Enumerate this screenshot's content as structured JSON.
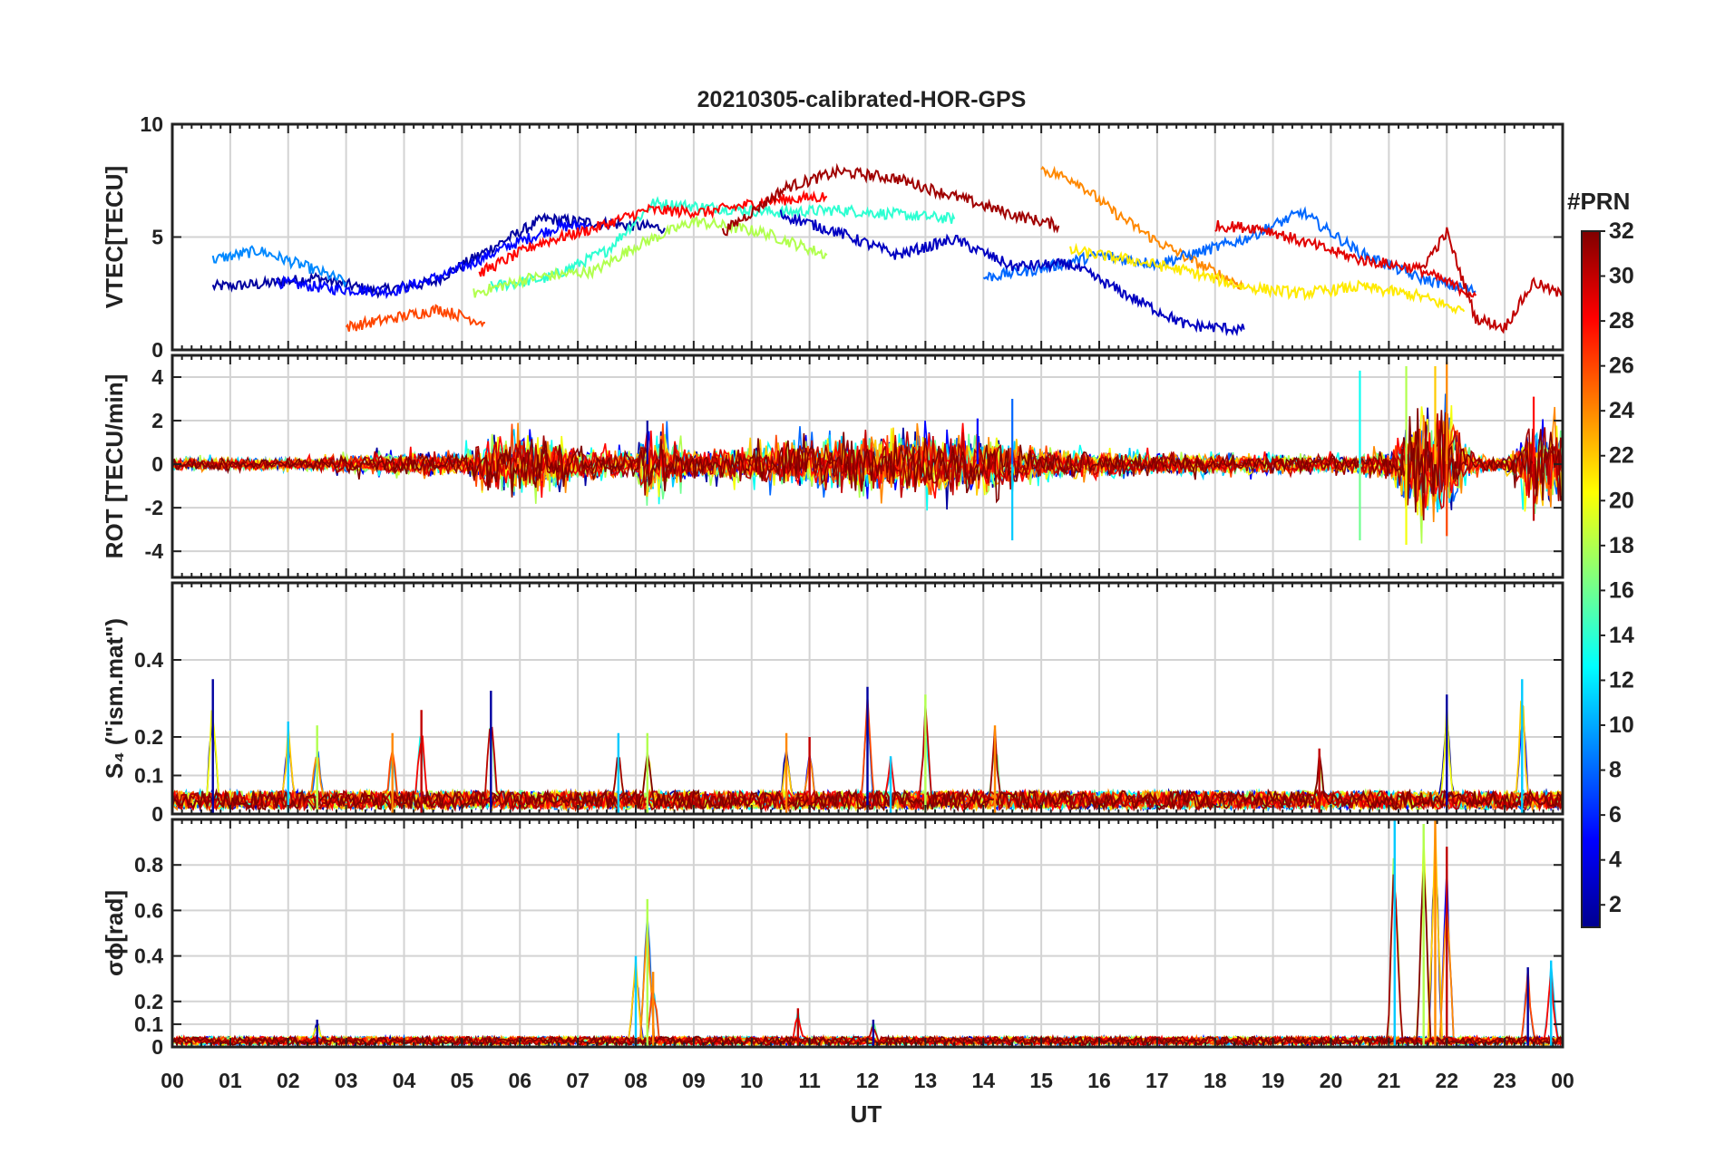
{
  "chart_data": {
    "type": "line",
    "title": "20210305-calibrated-HOR-GPS",
    "xlabel": "UT",
    "x_range": [
      0,
      24
    ],
    "x_tick_labels": [
      "00",
      "01",
      "02",
      "03",
      "04",
      "05",
      "06",
      "07",
      "08",
      "09",
      "10",
      "11",
      "12",
      "13",
      "14",
      "15",
      "16",
      "17",
      "18",
      "19",
      "20",
      "21",
      "22",
      "23",
      "00"
    ],
    "grid": true,
    "colorbar": {
      "label": "#PRN",
      "range": [
        1,
        32
      ],
      "tick_values": [
        2,
        4,
        6,
        8,
        10,
        12,
        14,
        16,
        18,
        20,
        22,
        24,
        26,
        28,
        30,
        32
      ],
      "colormap": "jet"
    },
    "panels": [
      {
        "name": "vtec",
        "ylabel": "VTEC[TECU]",
        "ylim": [
          0,
          10
        ],
        "yticks": [
          0,
          5,
          10
        ],
        "series": [
          {
            "prn": 2,
            "x": [
              0.7,
              1.5,
              2.5,
              3.5,
              4.5,
              5.5,
              6.4,
              7.5,
              8.5
            ],
            "y": [
              2.8,
              2.9,
              3.2,
              2.6,
              3.0,
              4.5,
              5.8,
              5.6,
              5.4
            ]
          },
          {
            "prn": 5,
            "x": [
              1.8,
              2.8,
              3.8,
              4.8,
              5.8,
              6.6,
              7.2
            ],
            "y": [
              3.0,
              2.7,
              2.6,
              3.4,
              4.6,
              5.4,
              5.6
            ]
          },
          {
            "prn": 9,
            "x": [
              0.7,
              1.5,
              2.4,
              3.0
            ],
            "y": [
              4.0,
              4.4,
              3.6,
              3.0
            ]
          },
          {
            "prn": 14,
            "x": [
              5.5,
              6.5,
              7.5,
              8.3,
              9.3,
              10.5,
              11.5,
              12.5,
              13.5
            ],
            "y": [
              2.8,
              3.2,
              4.4,
              6.5,
              6.3,
              6.1,
              6.2,
              6.0,
              5.8
            ]
          },
          {
            "prn": 18,
            "x": [
              5.2,
              6.2,
              7.3,
              8.0,
              9.0,
              10.2,
              11.3
            ],
            "y": [
              2.5,
              3.2,
              3.5,
              4.6,
              5.7,
              5.2,
              4.2
            ]
          },
          {
            "prn": 26,
            "x": [
              3.0,
              3.8,
              4.6,
              5.4
            ],
            "y": [
              1.0,
              1.4,
              1.8,
              1.2
            ]
          },
          {
            "prn": 28,
            "x": [
              5.3,
              6.3,
              7.3,
              8.2,
              9.2,
              10.3,
              11.3
            ],
            "y": [
              3.4,
              4.7,
              5.4,
              6.2,
              6.1,
              6.6,
              6.8
            ]
          },
          {
            "prn": 31,
            "x": [
              9.5,
              10.6,
              11.5,
              12.5,
              13.5,
              14.5,
              15.3
            ],
            "y": [
              5.2,
              7.2,
              7.9,
              7.6,
              6.8,
              6.0,
              5.5
            ]
          },
          {
            "prn": 24,
            "x": [
              15.0,
              15.6,
              16.2,
              17.0,
              17.8,
              18.5
            ],
            "y": [
              8.0,
              7.5,
              6.2,
              4.8,
              3.7,
              2.8
            ]
          },
          {
            "prn": 8,
            "x": [
              14.0,
              15.0,
              16.0,
              17.0,
              18.5,
              19.5,
              20.5,
              21.5,
              22.5
            ],
            "y": [
              3.2,
              3.6,
              4.2,
              3.8,
              4.9,
              6.1,
              4.3,
              3.2,
              2.6
            ]
          },
          {
            "prn": 3,
            "x": [
              10.5,
              11.5,
              12.5,
              13.5,
              14.5,
              15.5,
              16.5,
              17.5,
              18.5
            ],
            "y": [
              6.0,
              5.2,
              4.2,
              4.9,
              3.7,
              3.8,
              2.4,
              1.1,
              0.9
            ]
          },
          {
            "prn": 21,
            "x": [
              15.5,
              16.5,
              17.5,
              18.5,
              19.5,
              20.5,
              21.5,
              22.3
            ],
            "y": [
              4.4,
              4.0,
              3.5,
              2.8,
              2.5,
              2.8,
              2.4,
              1.7
            ]
          },
          {
            "prn": 29,
            "x": [
              18.0,
              18.8,
              19.5,
              20.5,
              21.5,
              22.5
            ],
            "y": [
              5.5,
              5.4,
              4.8,
              4.0,
              3.6,
              2.4
            ]
          },
          {
            "prn": 30,
            "x": [
              21.5,
              22.0,
              22.5,
              23.0,
              23.5,
              24.0
            ],
            "y": [
              3.4,
              5.2,
              1.4,
              1.0,
              3.0,
              2.4
            ]
          }
        ]
      },
      {
        "name": "rot",
        "ylabel": "ROT [TECU/min]",
        "ylim": [
          -5.2,
          5
        ],
        "yticks": [
          -4,
          -2,
          0,
          2,
          4
        ],
        "activity_envelope": {
          "x": [
            0,
            1,
            2,
            3,
            4,
            5,
            5.5,
            6,
            7,
            8,
            8.2,
            9,
            10,
            11,
            12,
            13,
            14,
            15,
            16,
            17,
            18,
            19,
            20,
            20.5,
            21,
            21.5,
            22,
            22.5,
            23,
            23.5,
            24
          ],
          "amplitude": [
            0.3,
            0.3,
            0.3,
            0.4,
            0.6,
            0.6,
            1.4,
            1.6,
            0.8,
            0.6,
            1.8,
            0.6,
            0.9,
            1.2,
            1.4,
            1.6,
            1.5,
            0.8,
            0.6,
            0.5,
            0.5,
            0.5,
            0.4,
            0.4,
            0.8,
            3.0,
            2.8,
            0.4,
            0.3,
            2.0,
            1.8
          ]
        },
        "peaks": [
          {
            "x": 8.2,
            "y": 2.0
          },
          {
            "x": 13.9,
            "y": 2.1
          },
          {
            "x": 14.5,
            "y": 3.0
          },
          {
            "x": 14.5,
            "y": -3.5
          },
          {
            "x": 20.5,
            "y": 4.3
          },
          {
            "x": 20.5,
            "y": -3.5
          },
          {
            "x": 21.3,
            "y": 4.5
          },
          {
            "x": 21.3,
            "y": -3.7
          },
          {
            "x": 21.8,
            "y": 4.5
          },
          {
            "x": 22.0,
            "y": 4.7
          },
          {
            "x": 22.0,
            "y": -3.3
          },
          {
            "x": 23.5,
            "y": 3.1
          },
          {
            "x": 23.5,
            "y": -2.6
          }
        ]
      },
      {
        "name": "s4",
        "ylabel": "S₄ (\"ism.mat\")",
        "ylim": [
          0,
          0.6
        ],
        "yticks": [
          0,
          0.1,
          0.2,
          0.4
        ],
        "baseline": 0.04,
        "peaks": [
          {
            "x": 0.7,
            "y": 0.35
          },
          {
            "x": 2.0,
            "y": 0.24
          },
          {
            "x": 2.5,
            "y": 0.23
          },
          {
            "x": 3.8,
            "y": 0.21
          },
          {
            "x": 4.3,
            "y": 0.27
          },
          {
            "x": 5.5,
            "y": 0.32
          },
          {
            "x": 7.7,
            "y": 0.21
          },
          {
            "x": 8.2,
            "y": 0.21
          },
          {
            "x": 10.6,
            "y": 0.21
          },
          {
            "x": 11.0,
            "y": 0.2
          },
          {
            "x": 12.0,
            "y": 0.33
          },
          {
            "x": 12.4,
            "y": 0.15
          },
          {
            "x": 13.0,
            "y": 0.31
          },
          {
            "x": 14.2,
            "y": 0.23
          },
          {
            "x": 19.8,
            "y": 0.17
          },
          {
            "x": 22.0,
            "y": 0.31
          },
          {
            "x": 23.3,
            "y": 0.35
          }
        ]
      },
      {
        "name": "sigma_phi",
        "ylabel": "σϕ[rad]",
        "ylim": [
          0,
          1
        ],
        "yticks": [
          0,
          0.1,
          0.2,
          0.4,
          0.6,
          0.8
        ],
        "baseline": 0.03,
        "peaks": [
          {
            "x": 2.5,
            "y": 0.12
          },
          {
            "x": 8.0,
            "y": 0.4
          },
          {
            "x": 8.2,
            "y": 0.65
          },
          {
            "x": 8.3,
            "y": 0.33
          },
          {
            "x": 10.8,
            "y": 0.17
          },
          {
            "x": 12.1,
            "y": 0.12
          },
          {
            "x": 21.1,
            "y": 1.0
          },
          {
            "x": 21.6,
            "y": 0.98
          },
          {
            "x": 21.8,
            "y": 1.0
          },
          {
            "x": 22.0,
            "y": 0.88
          },
          {
            "x": 23.4,
            "y": 0.35
          },
          {
            "x": 23.8,
            "y": 0.38
          }
        ]
      }
    ]
  }
}
